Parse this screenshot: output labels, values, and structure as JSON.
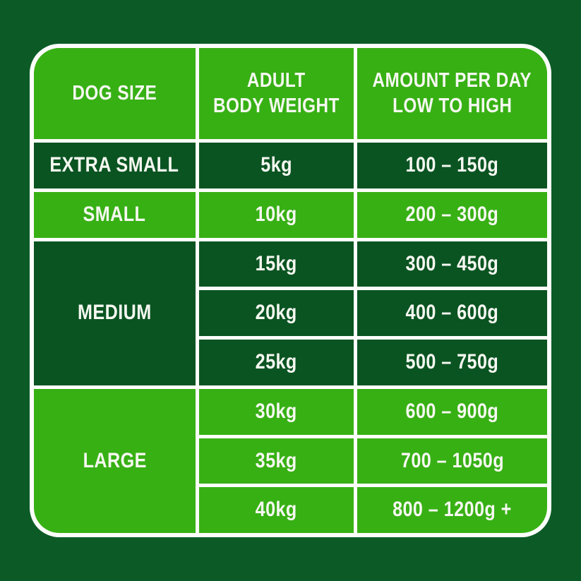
{
  "colors": {
    "outer": "#0C5B26",
    "dark": "#0A5422",
    "bright": "#37B014",
    "border": "#FDFEFB",
    "text": "#F6F8F1"
  },
  "table": {
    "headers": [
      {
        "line1": "DOG SIZE",
        "line2": ""
      },
      {
        "line1": "ADULT",
        "line2": "BODY WEIGHT"
      },
      {
        "line1": "AMOUNT PER DAY",
        "line2": "LOW TO HIGH"
      }
    ],
    "groups": [
      {
        "size": "EXTRA SMALL",
        "shade": "dark",
        "rows": [
          {
            "weight": "5kg",
            "amount": "100 – 150g"
          }
        ]
      },
      {
        "size": "SMALL",
        "shade": "bright",
        "rows": [
          {
            "weight": "10kg",
            "amount": "200 – 300g"
          }
        ]
      },
      {
        "size": "MEDIUM",
        "shade": "dark",
        "rows": [
          {
            "weight": "15kg",
            "amount": "300 – 450g"
          },
          {
            "weight": "20kg",
            "amount": "400 – 600g"
          },
          {
            "weight": "25kg",
            "amount": "500 – 750g"
          }
        ]
      },
      {
        "size": "LARGE",
        "shade": "bright",
        "rows": [
          {
            "weight": "30kg",
            "amount": "600 – 900g"
          },
          {
            "weight": "35kg",
            "amount": "700 – 1050g"
          },
          {
            "weight": "40kg",
            "amount": "800 – 1200g +"
          }
        ]
      }
    ]
  },
  "chart_data": {
    "type": "table",
    "columns": [
      "DOG SIZE",
      "ADULT BODY WEIGHT",
      "AMOUNT PER DAY LOW TO HIGH"
    ],
    "rows": [
      [
        "EXTRA SMALL",
        "5kg",
        "100 – 150g"
      ],
      [
        "SMALL",
        "10kg",
        "200 – 300g"
      ],
      [
        "MEDIUM",
        "15kg",
        "300 – 450g"
      ],
      [
        "MEDIUM",
        "20kg",
        "400 – 600g"
      ],
      [
        "MEDIUM",
        "25kg",
        "500 – 750g"
      ],
      [
        "LARGE",
        "30kg",
        "600 – 900g"
      ],
      [
        "LARGE",
        "35kg",
        "700 – 1050g"
      ],
      [
        "LARGE",
        "40kg",
        "800 – 1200g +"
      ]
    ],
    "legend_position": "none",
    "grid": true
  }
}
